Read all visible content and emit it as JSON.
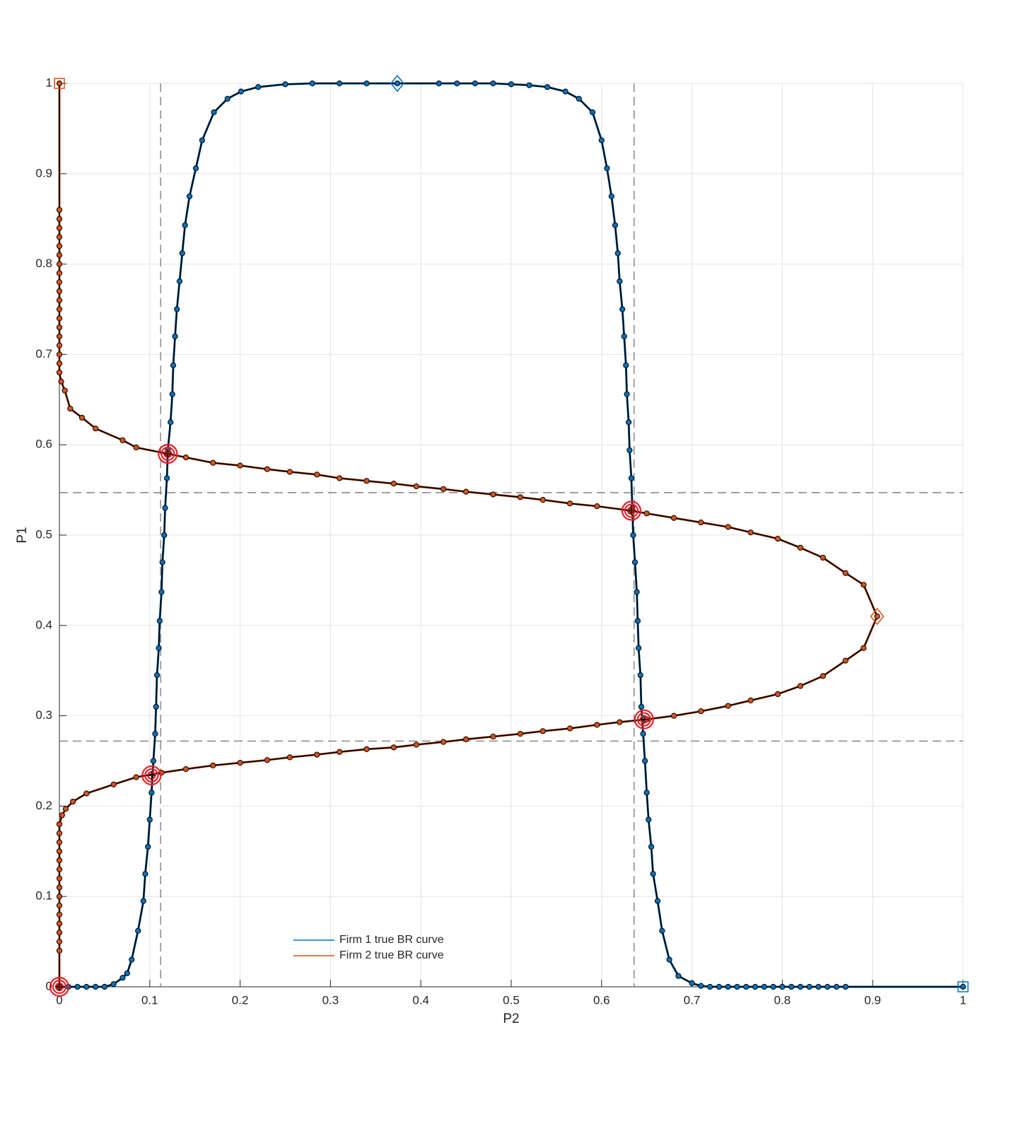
{
  "chart_data": {
    "type": "line",
    "xlabel": "P2",
    "ylabel": "P1",
    "xlim": [
      0,
      1
    ],
    "ylim": [
      0,
      1
    ],
    "xticks": [
      0,
      0.1,
      0.2,
      0.3,
      0.4,
      0.5,
      0.6,
      0.7,
      0.8,
      0.9,
      1
    ],
    "yticks": [
      0,
      0.1,
      0.2,
      0.3,
      0.4,
      0.5,
      0.6,
      0.7,
      0.8,
      0.9,
      1
    ],
    "grid": true,
    "legend": "lower center",
    "series": [
      {
        "name": "Firm 1 true BR curve",
        "color": "#0072BD",
        "x": [
          0,
          0.01,
          0.02,
          0.03,
          0.04,
          0.05,
          0.06,
          0.07,
          0.075,
          0.08,
          0.087,
          0.093,
          0.095,
          0.098,
          0.1,
          0.102,
          0.104,
          0.106,
          0.107,
          0.108,
          0.11,
          0.111,
          0.113,
          0.114,
          0.116,
          0.117,
          0.119,
          0.12,
          0.123,
          0.125,
          0.126,
          0.128,
          0.13,
          0.133,
          0.136,
          0.139,
          0.144,
          0.151,
          0.158,
          0.171,
          0.186,
          0.201,
          0.22,
          0.25,
          0.28,
          0.31,
          0.34,
          0.374,
          0.42,
          0.44,
          0.46,
          0.48,
          0.5,
          0.52,
          0.54,
          0.56,
          0.575,
          0.59,
          0.6,
          0.606,
          0.611,
          0.615,
          0.618,
          0.62,
          0.623,
          0.625,
          0.627,
          0.628,
          0.63,
          0.631,
          0.633,
          0.634,
          0.635,
          0.637,
          0.639,
          0.64,
          0.641,
          0.643,
          0.644,
          0.646,
          0.648,
          0.65,
          0.652,
          0.655,
          0.657,
          0.662,
          0.667,
          0.675,
          0.685,
          0.7,
          0.71,
          0.72,
          0.73,
          0.74,
          0.75,
          0.76,
          0.77,
          0.78,
          0.79,
          0.8,
          0.81,
          0.82,
          0.83,
          0.84,
          0.85,
          0.86,
          0.87,
          1
        ],
        "y": [
          0,
          0,
          0,
          0,
          0,
          0,
          0.003,
          0.01,
          0.015,
          0.03,
          0.062,
          0.095,
          0.125,
          0.155,
          0.185,
          0.215,
          0.25,
          0.28,
          0.31,
          0.345,
          0.375,
          0.405,
          0.437,
          0.47,
          0.5,
          0.53,
          0.563,
          0.594,
          0.625,
          0.656,
          0.688,
          0.72,
          0.75,
          0.781,
          0.812,
          0.843,
          0.875,
          0.906,
          0.937,
          0.968,
          0.983,
          0.991,
          0.996,
          0.999,
          1,
          1,
          1,
          1,
          1,
          1,
          1,
          1,
          0.999,
          0.998,
          0.996,
          0.991,
          0.983,
          0.968,
          0.937,
          0.906,
          0.875,
          0.843,
          0.812,
          0.781,
          0.75,
          0.72,
          0.688,
          0.656,
          0.625,
          0.594,
          0.563,
          0.53,
          0.5,
          0.47,
          0.437,
          0.405,
          0.375,
          0.345,
          0.31,
          0.28,
          0.25,
          0.215,
          0.185,
          0.155,
          0.125,
          0.095,
          0.062,
          0.03,
          0.012,
          0.004,
          0.001,
          0,
          0,
          0,
          0,
          0,
          0,
          0,
          0,
          0,
          0,
          0,
          0,
          0,
          0,
          0,
          0,
          0
        ],
        "square": [
          1,
          0
        ],
        "diamond": [
          0.374,
          1
        ]
      },
      {
        "name": "Firm 2 true BR curve",
        "color": "#D95319",
        "x": [
          0,
          0,
          0,
          0,
          0,
          0,
          0,
          0,
          0,
          0,
          0,
          0,
          0,
          0,
          0,
          0,
          0,
          0,
          0,
          0,
          0.002,
          0.006,
          0.012,
          0.025,
          0.04,
          0.07,
          0.085,
          0.12,
          0.14,
          0.17,
          0.2,
          0.23,
          0.255,
          0.285,
          0.31,
          0.34,
          0.37,
          0.395,
          0.425,
          0.45,
          0.48,
          0.51,
          0.535,
          0.565,
          0.595,
          0.633,
          0.65,
          0.68,
          0.71,
          0.74,
          0.765,
          0.795,
          0.82,
          0.845,
          0.87,
          0.89,
          0.905,
          0.89,
          0.87,
          0.845,
          0.82,
          0.795,
          0.765,
          0.74,
          0.71,
          0.68,
          0.65,
          0.62,
          0.595,
          0.565,
          0.535,
          0.51,
          0.48,
          0.45,
          0.425,
          0.395,
          0.37,
          0.34,
          0.31,
          0.285,
          0.255,
          0.23,
          0.2,
          0.17,
          0.14,
          0.113,
          0.085,
          0.06,
          0.03,
          0.015,
          0.007,
          0.003,
          0,
          0,
          0,
          0,
          0,
          0,
          0,
          0,
          0,
          0,
          0,
          0,
          0,
          0,
          0,
          0
        ],
        "y": [
          1,
          0.86,
          0.85,
          0.84,
          0.83,
          0.82,
          0.81,
          0.8,
          0.79,
          0.78,
          0.77,
          0.76,
          0.75,
          0.74,
          0.73,
          0.72,
          0.71,
          0.7,
          0.69,
          0.68,
          0.67,
          0.66,
          0.64,
          0.63,
          0.618,
          0.605,
          0.597,
          0.59,
          0.586,
          0.58,
          0.577,
          0.573,
          0.57,
          0.567,
          0.563,
          0.56,
          0.557,
          0.554,
          0.551,
          0.548,
          0.545,
          0.542,
          0.539,
          0.535,
          0.532,
          0.527,
          0.524,
          0.519,
          0.514,
          0.509,
          0.503,
          0.496,
          0.486,
          0.475,
          0.458,
          0.445,
          0.41,
          0.375,
          0.361,
          0.344,
          0.333,
          0.324,
          0.317,
          0.311,
          0.305,
          0.3,
          0.296,
          0.293,
          0.29,
          0.286,
          0.283,
          0.28,
          0.277,
          0.274,
          0.271,
          0.268,
          0.265,
          0.263,
          0.26,
          0.257,
          0.254,
          0.251,
          0.248,
          0.245,
          0.241,
          0.237,
          0.232,
          0.224,
          0.214,
          0.205,
          0.197,
          0.19,
          0.18,
          0.17,
          0.16,
          0.15,
          0.14,
          0.13,
          0.12,
          0.11,
          0.1,
          0.09,
          0.08,
          0.07,
          0.06,
          0.05,
          0.04,
          0
        ],
        "square": [
          0,
          1
        ],
        "diamond": [
          0.905,
          0.41
        ]
      }
    ],
    "equilibria": {
      "x": [
        0,
        0.102,
        0.12,
        0.633,
        0.647
      ],
      "y": [
        0,
        0.234,
        0.59,
        0.527,
        0.296
      ]
    },
    "reference_lines": {
      "x": [
        0.112,
        0.636
      ],
      "y": [
        0.547,
        0.272
      ]
    }
  }
}
